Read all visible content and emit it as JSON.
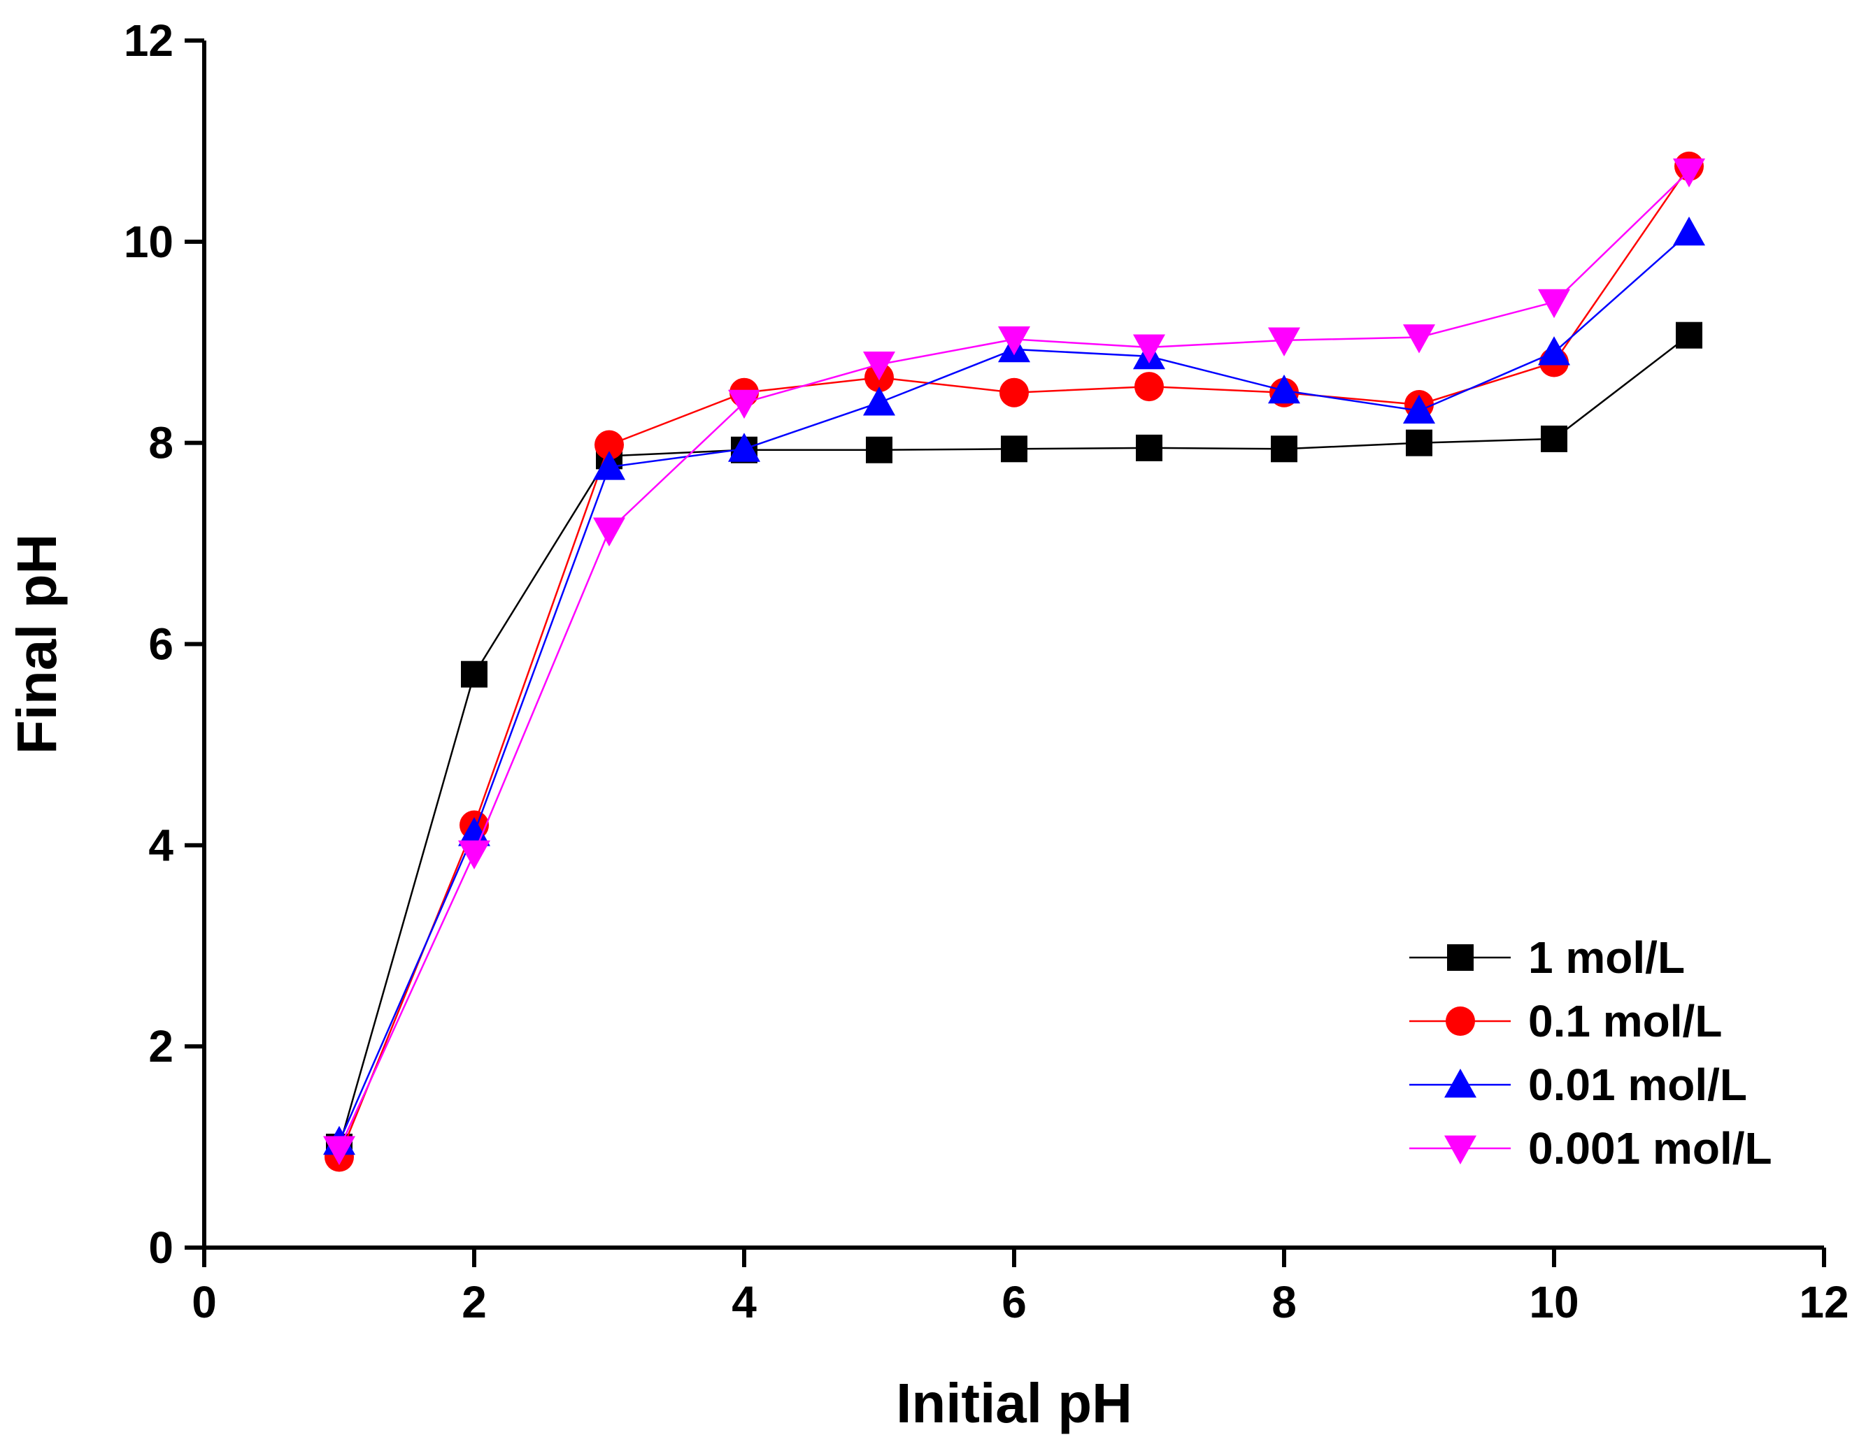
{
  "chart_data": {
    "type": "line",
    "title": "",
    "xlabel": "Initial pH",
    "ylabel": "Final pH",
    "xlim": [
      0,
      12
    ],
    "ylim": [
      0,
      12
    ],
    "xticks": [
      0,
      2,
      4,
      6,
      8,
      10,
      12
    ],
    "yticks": [
      0,
      2,
      4,
      6,
      8,
      10,
      12
    ],
    "x": [
      1,
      2,
      3,
      4,
      5,
      6,
      7,
      8,
      9,
      10,
      11
    ],
    "legend_position": "bottom-right",
    "series": [
      {
        "name": "1 mol/L",
        "color": "#000000",
        "marker": "square",
        "values": [
          1.0,
          5.7,
          7.87,
          7.93,
          7.93,
          7.94,
          7.95,
          7.94,
          8.0,
          8.04,
          9.07
        ]
      },
      {
        "name": "0.1 mol/L",
        "color": "#ff0000",
        "marker": "circle",
        "values": [
          0.9,
          4.2,
          7.98,
          8.5,
          8.65,
          8.5,
          8.56,
          8.5,
          8.38,
          8.8,
          10.75
        ]
      },
      {
        "name": "0.01 mol/L",
        "color": "#0000ff",
        "marker": "triangle-up",
        "values": [
          1.05,
          4.12,
          7.76,
          7.94,
          8.4,
          8.93,
          8.86,
          8.52,
          8.32,
          8.9,
          10.09
        ]
      },
      {
        "name": "0.001 mol/L",
        "color": "#ff00ff",
        "marker": "triangle-down",
        "values": [
          0.98,
          3.92,
          7.13,
          8.4,
          8.78,
          9.03,
          8.95,
          9.02,
          9.05,
          9.4,
          10.7
        ]
      }
    ]
  }
}
